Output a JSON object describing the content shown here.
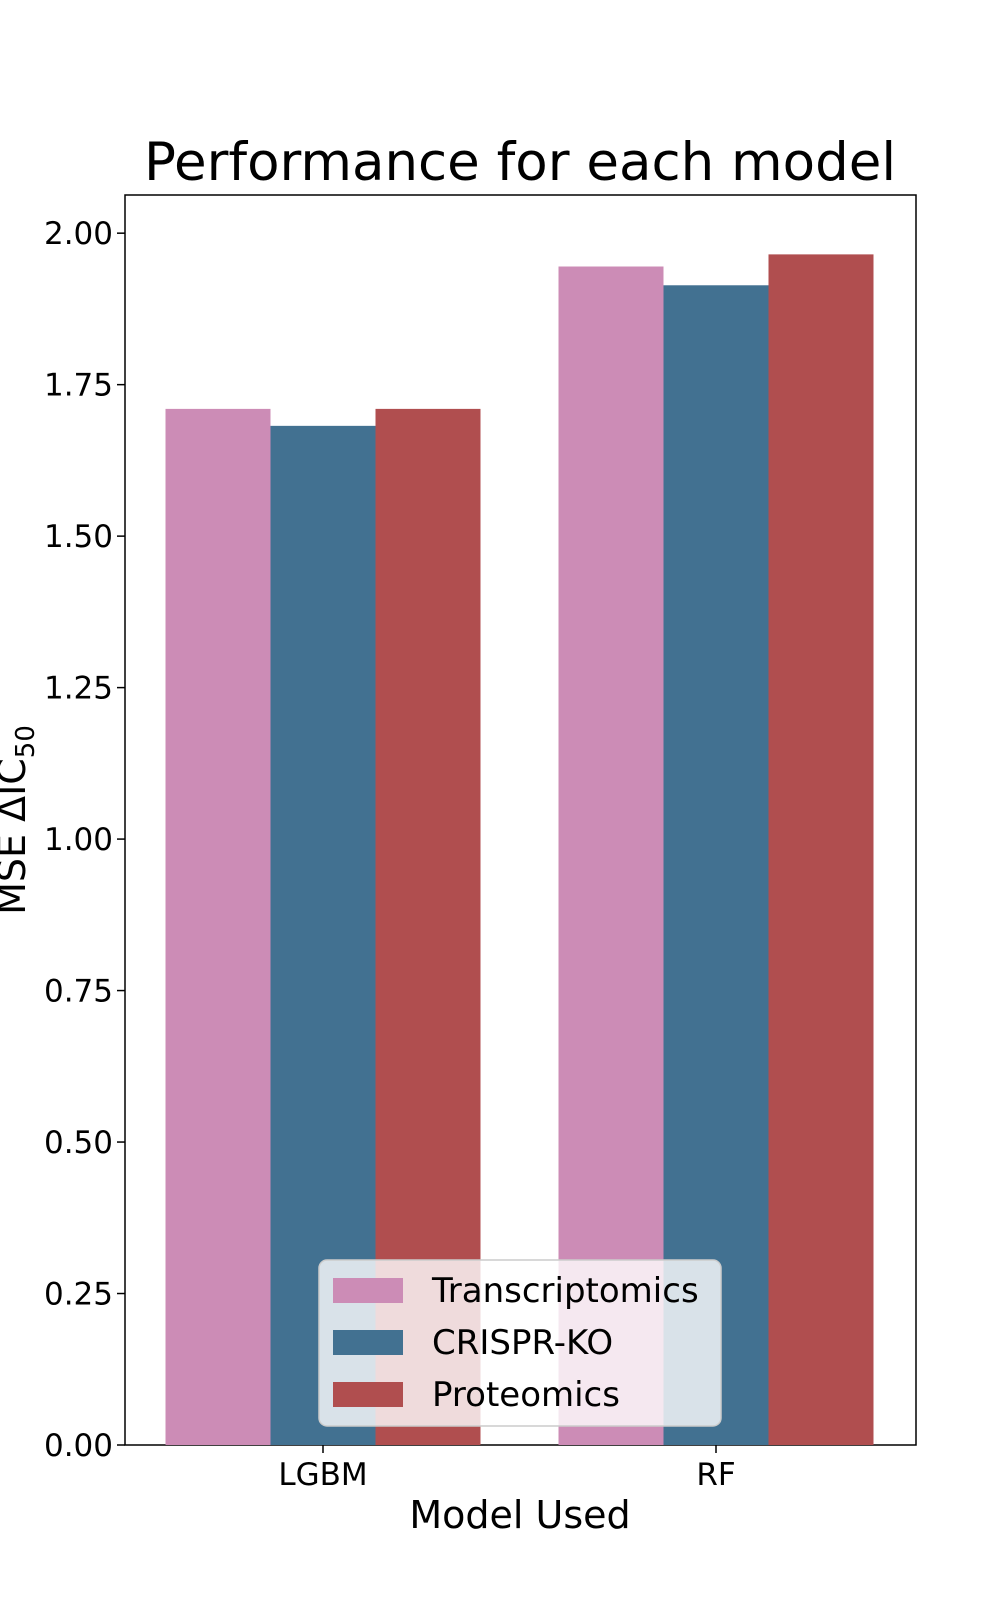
{
  "chart_data": {
    "type": "bar",
    "title": "Performance for each model",
    "xlabel": "Model Used",
    "ylabel": "MSE ΔIC",
    "ylabel_subscript": "50",
    "categories": [
      "LGBM",
      "RF"
    ],
    "series": [
      {
        "name": "Transcriptomics",
        "values": [
          1.71,
          1.945
        ],
        "color": "#cc8cb6"
      },
      {
        "name": "CRISPR-KO",
        "values": [
          1.682,
          1.914
        ],
        "color": "#427191"
      },
      {
        "name": "Proteomics",
        "values": [
          1.71,
          1.965
        ],
        "color": "#b04e4f"
      }
    ],
    "ylim": [
      0,
      2.063
    ],
    "yticks": [
      "0.00",
      "0.25",
      "0.50",
      "0.75",
      "1.00",
      "1.25",
      "1.50",
      "1.75",
      "2.00"
    ],
    "grid": false,
    "legend_position": "lower center"
  }
}
